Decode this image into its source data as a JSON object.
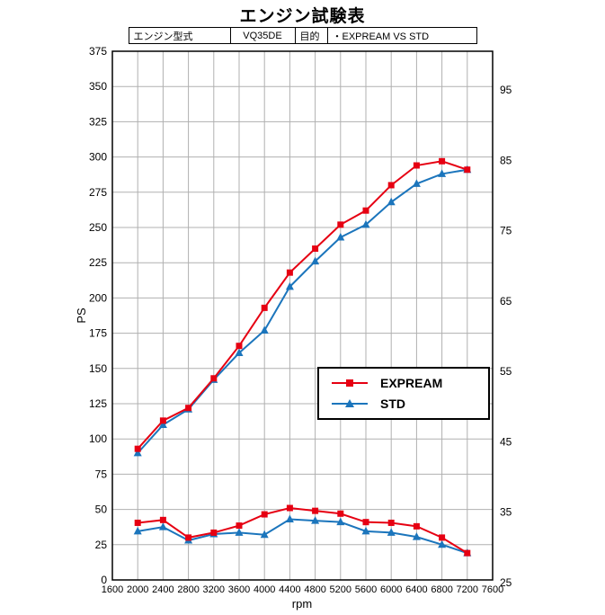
{
  "page": {
    "title": "エンジン試験表"
  },
  "spec_table": {
    "engine_model_label": "エンジン型式",
    "engine_model_value": "VQ35DE",
    "purpose_label": "目的",
    "purpose_value": "・EXPREAM VS STD"
  },
  "colors": {
    "expream": "#e60012",
    "std": "#1b75bc",
    "grid": "#b0b0b0",
    "axis": "#000000",
    "background": "#ffffff"
  },
  "chart_data": {
    "type": "line",
    "title": "エンジン試験表",
    "xlabel": "rpm",
    "ylabel_left": "PS",
    "ylabel_right": "",
    "grid": true,
    "legend_position": "center-right",
    "xlim": [
      1600,
      7600
    ],
    "x_tick_step": 400,
    "x_tick_labels": [
      1600,
      2000,
      2400,
      2800,
      3200,
      3600,
      4000,
      4400,
      4800,
      5200,
      5600,
      6000,
      6400,
      6800,
      7200,
      7600
    ],
    "ylim_left": [
      0,
      375
    ],
    "y_left_tick_step": 25,
    "y_left_tick_labels": [
      0,
      25,
      50,
      75,
      100,
      125,
      150,
      175,
      200,
      225,
      250,
      275,
      300,
      325,
      350,
      375
    ],
    "ylim_right": [
      25,
      95
    ],
    "y_right_tick_step": 10,
    "y_right_tick_labels": [
      25,
      35,
      45,
      55,
      65,
      75,
      85,
      95
    ],
    "x_rpm": [
      2000,
      2400,
      2800,
      3200,
      3600,
      4000,
      4400,
      4800,
      5200,
      5600,
      6000,
      6400,
      6800,
      7200
    ],
    "power_ps_series": [
      {
        "name": "EXPREAM",
        "color": "#e60012",
        "marker": "square",
        "axis": "left",
        "values": [
          93,
          113,
          122,
          143,
          166,
          193,
          218,
          235,
          252,
          262,
          280,
          294,
          297,
          291
        ]
      },
      {
        "name": "STD",
        "color": "#1b75bc",
        "marker": "triangle",
        "axis": "left",
        "values": [
          90,
          110,
          121,
          142,
          161,
          177,
          208,
          226,
          243,
          252,
          268,
          281,
          288,
          291
        ]
      }
    ],
    "torque_right_axis_series": [
      {
        "name": "EXPREAM",
        "color": "#e60012",
        "marker": "square",
        "axis": "right",
        "values": [
          33.5,
          33.9,
          31.4,
          32.1,
          33.1,
          34.7,
          35.6,
          35.2,
          34.8,
          33.6,
          33.5,
          33.0,
          31.4,
          29.2
        ]
      },
      {
        "name": "STD",
        "color": "#1b75bc",
        "marker": "triangle",
        "axis": "right",
        "values": [
          32.3,
          32.9,
          31.0,
          31.9,
          32.1,
          31.8,
          34.0,
          33.8,
          33.6,
          32.3,
          32.1,
          31.5,
          30.4,
          29.2
        ]
      }
    ]
  }
}
